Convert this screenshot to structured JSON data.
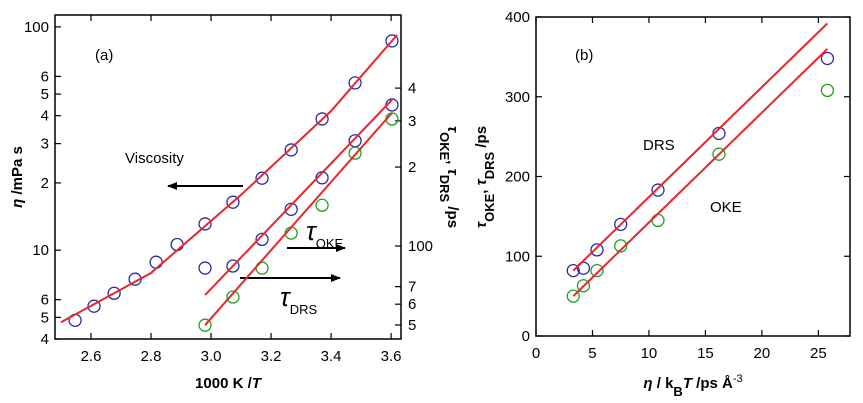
{
  "chart_data": [
    {
      "type": "scatter",
      "label": "(a)",
      "xlabel": [
        {
          "text": "1000 K /",
          "style": "bold"
        },
        {
          "text": "T",
          "style": "bold-italic"
        }
      ],
      "ylabel": [
        {
          "text": "η",
          "style": "bold-italic"
        },
        {
          "text": " /mPa s",
          "style": "bold"
        }
      ],
      "y2label": [
        {
          "text": "τ",
          "style": "bold-italic"
        },
        {
          "text": "OKE",
          "style": "sub"
        },
        {
          "text": ", ",
          "style": "bold"
        },
        {
          "text": "τ",
          "style": "bold-italic"
        },
        {
          "text": "DRS",
          "style": "sub"
        },
        {
          "text": " /ps",
          "style": "bold"
        }
      ],
      "annotations": [
        [
          {
            "text": "Viscosity",
            "style": "normal"
          }
        ],
        [
          {
            "text": "τ",
            "style": "big-italic"
          },
          {
            "text": "OKE",
            "style": "sub"
          }
        ],
        [
          {
            "text": "τ",
            "style": "big-italic"
          },
          {
            "text": "DRS",
            "style": "sub"
          }
        ]
      ],
      "xlim": [
        2.48,
        3.633
      ],
      "xticks": [
        2.6,
        2.8,
        {
          "value": 3,
          "label": "3.0"
        },
        3.2,
        3.4,
        3.6
      ],
      "ylog": true,
      "ylim": [
        4,
        113
      ],
      "yticks": [
        4,
        5,
        6,
        10,
        {
          "value": 20,
          "label": "2"
        },
        {
          "value": 30,
          "label": "3"
        },
        {
          "value": 40,
          "label": "4"
        },
        {
          "value": 50,
          "label": "5"
        },
        {
          "value": 60,
          "label": "6"
        },
        100
      ],
      "y2log": true,
      "y2lim": [
        44.2,
        760
      ],
      "y2ticks": [
        {
          "value": 50,
          "label": "5"
        },
        {
          "value": 60,
          "label": "6"
        },
        {
          "value": 70,
          "label": "7"
        },
        100,
        {
          "value": 200,
          "label": "2"
        },
        {
          "value": 300,
          "label": "3"
        },
        {
          "value": 400,
          "label": "4"
        }
      ],
      "series": [
        {
          "color": "#2a2aa0",
          "mode": "marker",
          "x": [
            2.547,
            2.61,
            2.677,
            2.747,
            2.817,
            2.887,
            2.98,
            3.073,
            3.17,
            3.267,
            3.37,
            3.48,
            3.603
          ],
          "values": [
            4.85,
            5.61,
            6.41,
            7.41,
            8.83,
            10.6,
            13.1,
            16.4,
            21.0,
            28.1,
            38.7,
            56.1,
            86.5
          ]
        },
        {
          "color": "#e8262b",
          "mode": "line",
          "x": [
            2.5,
            2.8,
            3.1,
            3.4,
            3.62
          ],
          "values": [
            4.75,
            7.9,
            17.7,
            42,
            92
          ]
        },
        {
          "color": "#2a2aa0",
          "mode": "marker",
          "axis": "y2",
          "x": [
            2.98,
            3.073,
            3.17,
            3.267,
            3.37,
            3.48,
            3.603
          ],
          "values": [
            82.4,
            83.9,
            106,
            138,
            182,
            252,
            345
          ]
        },
        {
          "color": "#1fa01f",
          "mode": "marker",
          "axis": "y2",
          "x": [
            2.98,
            3.073,
            3.17,
            3.267,
            3.37,
            3.48,
            3.603
          ],
          "values": [
            49.9,
            63.9,
            82.4,
            112,
            143,
            226,
            305
          ]
        },
        {
          "color": "#e8262b",
          "mode": "line",
          "axis": "y2",
          "x": [
            2.98,
            3.603
          ],
          "values": [
            65.0,
            361
          ]
        },
        {
          "color": "#e8262b",
          "mode": "line",
          "axis": "y2",
          "x": [
            2.98,
            3.603
          ],
          "values": [
            49.9,
            322
          ]
        }
      ]
    },
    {
      "type": "scatter",
      "label": "(b)",
      "xlabel": [
        {
          "text": "η",
          "style": "bold-italic"
        },
        {
          "text": " / k",
          "style": "bold"
        },
        {
          "text": "B",
          "style": "sub"
        },
        {
          "text": "T",
          "style": "bold-italic"
        },
        {
          "text": "  /ps Å",
          "style": "bold"
        },
        {
          "text": "-3",
          "style": "sup"
        }
      ],
      "ylabel": [
        {
          "text": "τ",
          "style": "bold-italic"
        },
        {
          "text": "OKE",
          "style": "sub"
        },
        {
          "text": ", ",
          "style": "bold"
        },
        {
          "text": "τ",
          "style": "bold-italic"
        },
        {
          "text": "DRS",
          "style": "sub"
        },
        {
          "text": " /ps",
          "style": "bold"
        }
      ],
      "annotations": [
        [
          {
            "text": "DRS",
            "style": "normal"
          }
        ],
        [
          {
            "text": "OKE",
            "style": "normal"
          }
        ]
      ],
      "xlim": [
        0,
        27.8
      ],
      "xticks": [
        0,
        5,
        10,
        15,
        20,
        25
      ],
      "ylim": [
        0,
        400
      ],
      "yticks": [
        0,
        100,
        200,
        300,
        400
      ],
      "series": [
        {
          "color": "#2a2aa0",
          "mode": "marker",
          "x": [
            3.3,
            4.2,
            5.4,
            7.5,
            10.8,
            16.2,
            25.8
          ],
          "values": [
            82,
            85,
            108,
            140,
            183,
            254,
            348
          ]
        },
        {
          "color": "#1fa01f",
          "mode": "marker",
          "x": [
            3.3,
            4.2,
            5.4,
            7.5,
            10.8,
            16.2,
            25.8
          ],
          "values": [
            50,
            63,
            82,
            113,
            145,
            228,
            308
          ]
        },
        {
          "color": "#e8262b",
          "mode": "line",
          "x": [
            3.3,
            25.8
          ],
          "values": [
            82,
            392
          ]
        },
        {
          "color": "#e8262b",
          "mode": "line",
          "x": [
            3.3,
            25.8
          ],
          "values": [
            50,
            360
          ]
        }
      ]
    }
  ]
}
